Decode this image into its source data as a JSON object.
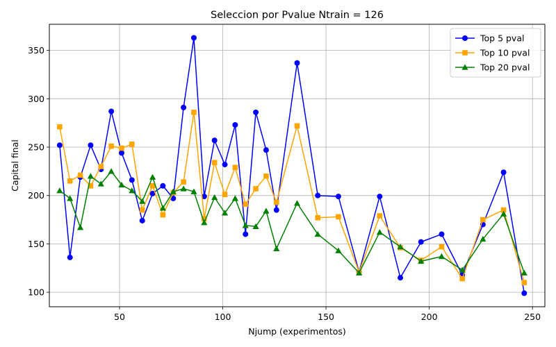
{
  "chart_data": {
    "type": "line",
    "title": "Seleccion por Pvalue Ntrain = 126",
    "xlabel": "Njump (experimentos)",
    "ylabel": "Capital final",
    "xlim": [
      16,
      256
    ],
    "ylim": [
      85,
      377
    ],
    "xticks": [
      50,
      100,
      150,
      200,
      250
    ],
    "yticks": [
      100,
      150,
      200,
      250,
      300,
      350
    ],
    "grid": true,
    "legend_position": "top-right",
    "x": [
      21,
      26,
      31,
      36,
      41,
      46,
      51,
      56,
      61,
      66,
      71,
      76,
      81,
      86,
      91,
      96,
      101,
      106,
      111,
      116,
      121,
      126,
      136,
      146,
      156,
      166,
      176,
      186,
      196,
      206,
      216,
      226,
      236,
      246
    ],
    "series": [
      {
        "name": "Top 5 pval",
        "color": "#0000ff",
        "marker": "circle",
        "values": [
          252,
          136,
          219,
          252,
          227,
          287,
          244,
          216,
          174,
          202,
          210,
          197,
          291,
          363,
          199,
          257,
          232,
          273,
          160,
          286,
          247,
          185,
          337,
          200,
          199,
          121,
          199,
          115,
          152,
          160,
          118,
          170,
          224,
          99
        ]
      },
      {
        "name": "Top 10 pval",
        "color": "#ffa500",
        "marker": "square",
        "values": [
          271,
          215,
          221,
          210,
          230,
          251,
          249,
          253,
          185,
          210,
          180,
          203,
          214,
          286,
          176,
          234,
          201,
          229,
          191,
          207,
          220,
          193,
          272,
          177,
          178,
          121,
          179,
          146,
          133,
          147,
          114,
          175,
          185,
          110
        ]
      },
      {
        "name": "Top 20 pval",
        "color": "#008000",
        "marker": "triangle",
        "values": [
          205,
          197,
          167,
          220,
          212,
          225,
          211,
          205,
          194,
          219,
          187,
          204,
          207,
          204,
          172,
          198,
          182,
          197,
          169,
          168,
          184,
          145,
          192,
          160,
          143,
          120,
          162,
          147,
          132,
          137,
          123,
          155,
          181,
          120
        ]
      }
    ]
  }
}
